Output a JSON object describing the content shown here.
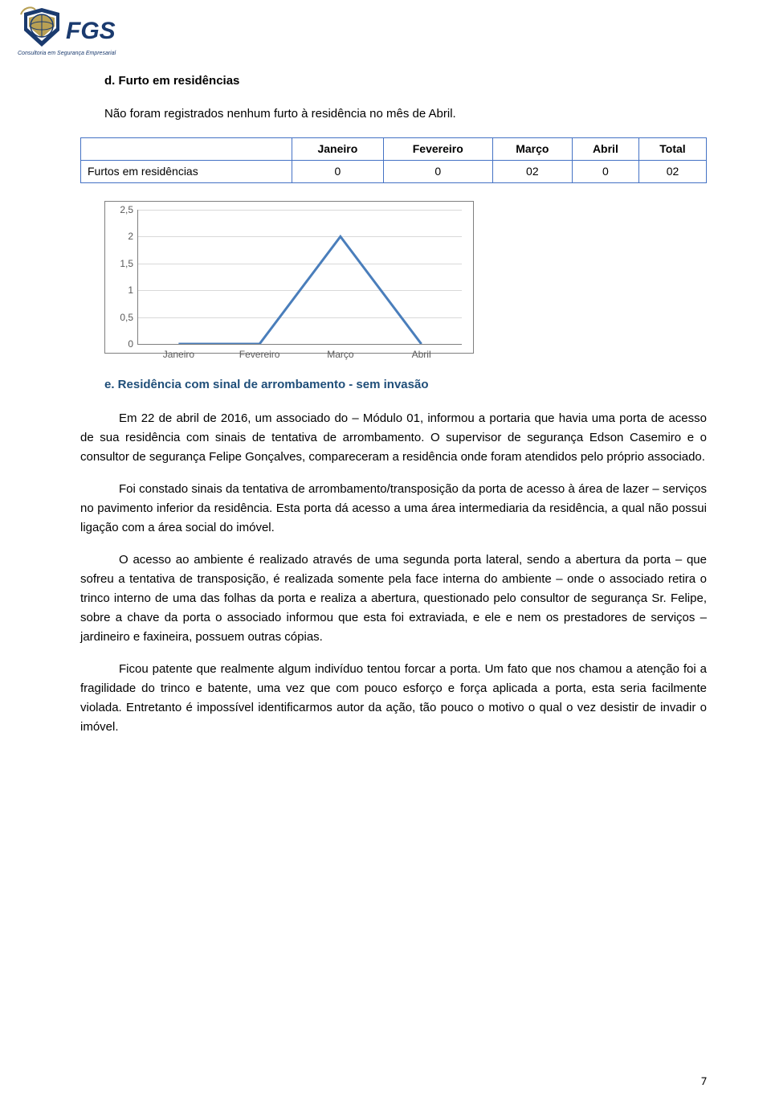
{
  "logo": {
    "text_main": "FGS",
    "text_sub": "Consultoria em Segurança Empresarial",
    "color_blue": "#1a3a6e",
    "color_gold": "#b8a054"
  },
  "section_d": {
    "title": "d.  Furto em residências",
    "intro": "Não foram registrados nenhum furto à residência no mês de Abril."
  },
  "table": {
    "headers": [
      "",
      "Janeiro",
      "Fevereiro",
      "Março",
      "Abril",
      "Total"
    ],
    "row_label": "Furtos em residências",
    "row_values": [
      "0",
      "0",
      "02",
      "0",
      "02"
    ],
    "border_color": "#4472c4"
  },
  "chart": {
    "type": "line",
    "categories": [
      "Janeiro",
      "Fevereiro",
      "Março",
      "Abril"
    ],
    "values": [
      0,
      0,
      2,
      0
    ],
    "ylim": [
      0,
      2.5
    ],
    "yticks": [
      0,
      0.5,
      1,
      1.5,
      2,
      2.5
    ],
    "ytick_labels": [
      "0",
      "0,5",
      "1",
      "1,5",
      "2",
      "2,5"
    ],
    "line_color": "#4a7ebb",
    "line_width": 3,
    "grid_color": "#d9d9d9",
    "axis_color": "#808080",
    "label_color": "#595959",
    "label_fontsize": 12,
    "background_color": "#ffffff",
    "border_color": "#808080"
  },
  "section_e": {
    "title": "e.  Residência com sinal de arrombamento - sem invasão",
    "title_color": "#1f4e79",
    "para1_prefix": "Em 22 de abril de 2016, um associado do – Módulo 01, informou a portaria que havia uma ",
    "para1": "porta de acesso de sua residência com sinais de tentativa de arrombamento. O supervisor de segurança Edson Casemiro e o consultor de segurança Felipe Gonçalves, compareceram a residência onde foram atendidos pelo próprio associado.",
    "para2": "Foi constado sinais da tentativa de arrombamento/transposição da porta de acesso à área de lazer – serviços no pavimento inferior da residência. Esta porta dá acesso a uma área intermediaria da residência, a qual não possui ligação com a área social do imóvel.",
    "para3": "O acesso ao ambiente é realizado através de uma segunda porta lateral, sendo a abertura da porta – que sofreu a tentativa de transposição, é realizada somente pela face interna do ambiente – onde o associado retira o trinco interno de uma das folhas da porta e realiza a abertura, questionado pelo consultor de segurança Sr. Felipe, sobre a chave da porta o associado informou que esta foi extraviada, e ele  e nem os prestadores de serviços – jardineiro e faxineira, possuem outras cópias.",
    "para4": "Ficou patente que realmente algum indivíduo tentou forcar a porta. Um fato que nos chamou a atenção foi a fragilidade do trinco e batente, uma vez que com pouco esforço e força aplicada a porta, esta seria facilmente violada. Entretanto é impossível identificarmos autor da ação, tão pouco o motivo o qual o vez desistir de invadir o imóvel."
  },
  "page_number": "7"
}
